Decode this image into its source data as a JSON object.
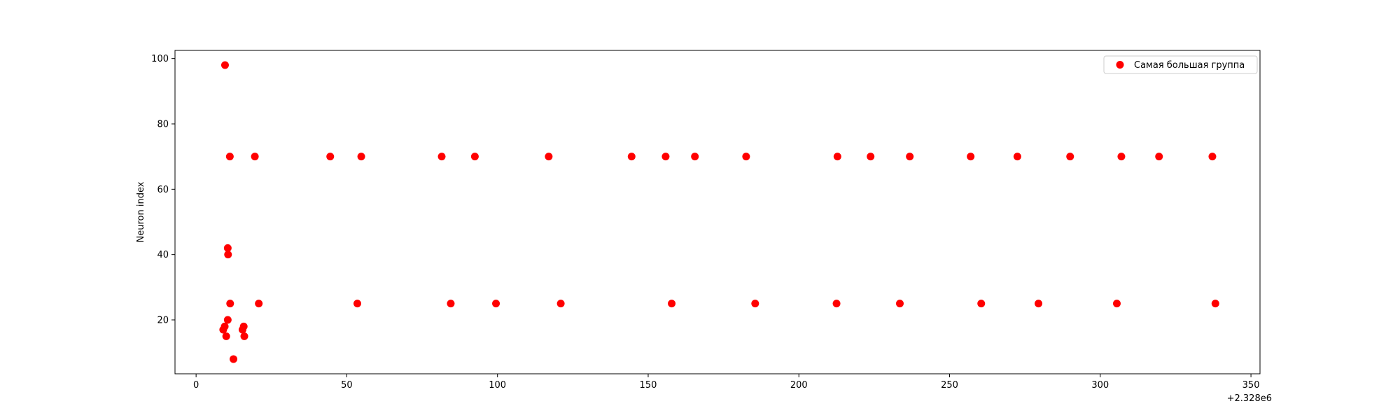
{
  "chart_data": {
    "type": "scatter",
    "title": "",
    "xlabel": "",
    "ylabel": "Neuron index",
    "x_offset_label": "+2.328e6",
    "xlim": [
      -7,
      353
    ],
    "ylim": [
      3.5,
      102.5
    ],
    "xticks": [
      0,
      50,
      100,
      150,
      200,
      250,
      300,
      350
    ],
    "yticks": [
      20,
      40,
      60,
      80,
      100
    ],
    "grid": false,
    "legend_position": "top-right",
    "series": [
      {
        "name": "Самая большая группа",
        "color": "#ff0000",
        "points": [
          {
            "x": 9.0,
            "y": 17
          },
          {
            "x": 9.5,
            "y": 18
          },
          {
            "x": 9.6,
            "y": 98
          },
          {
            "x": 10.0,
            "y": 15
          },
          {
            "x": 10.5,
            "y": 20
          },
          {
            "x": 10.5,
            "y": 42
          },
          {
            "x": 10.6,
            "y": 40
          },
          {
            "x": 11.2,
            "y": 70
          },
          {
            "x": 11.3,
            "y": 25
          },
          {
            "x": 12.4,
            "y": 8
          },
          {
            "x": 15.4,
            "y": 17
          },
          {
            "x": 15.8,
            "y": 18
          },
          {
            "x": 16.0,
            "y": 15
          },
          {
            "x": 19.5,
            "y": 70
          },
          {
            "x": 20.8,
            "y": 25
          },
          {
            "x": 44.5,
            "y": 70
          },
          {
            "x": 53.5,
            "y": 25
          },
          {
            "x": 54.8,
            "y": 70
          },
          {
            "x": 81.5,
            "y": 70
          },
          {
            "x": 84.5,
            "y": 25
          },
          {
            "x": 92.5,
            "y": 70
          },
          {
            "x": 99.5,
            "y": 25
          },
          {
            "x": 117.0,
            "y": 70
          },
          {
            "x": 121.0,
            "y": 25
          },
          {
            "x": 144.5,
            "y": 70
          },
          {
            "x": 155.8,
            "y": 70
          },
          {
            "x": 157.8,
            "y": 25
          },
          {
            "x": 165.5,
            "y": 70
          },
          {
            "x": 182.5,
            "y": 70
          },
          {
            "x": 185.5,
            "y": 25
          },
          {
            "x": 212.5,
            "y": 25
          },
          {
            "x": 212.8,
            "y": 70
          },
          {
            "x": 223.8,
            "y": 70
          },
          {
            "x": 233.5,
            "y": 25
          },
          {
            "x": 236.8,
            "y": 70
          },
          {
            "x": 257.0,
            "y": 70
          },
          {
            "x": 260.5,
            "y": 25
          },
          {
            "x": 272.5,
            "y": 70
          },
          {
            "x": 279.5,
            "y": 25
          },
          {
            "x": 290.0,
            "y": 70
          },
          {
            "x": 305.5,
            "y": 25
          },
          {
            "x": 307.0,
            "y": 70
          },
          {
            "x": 319.5,
            "y": 70
          },
          {
            "x": 337.2,
            "y": 70
          },
          {
            "x": 338.2,
            "y": 25
          }
        ]
      }
    ]
  }
}
